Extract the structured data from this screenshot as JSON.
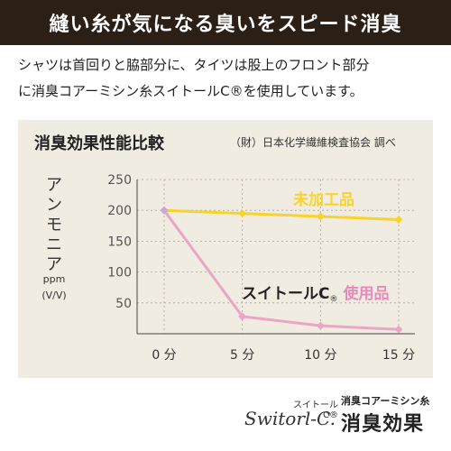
{
  "headline": "縫い糸が気になる臭いをスピード消臭",
  "description": [
    "シャツは首回りと脇部分に、タイツは股上のフロント部分",
    "に消臭コアーミシン糸スイトールC®を使用しています。"
  ],
  "colors": {
    "headline_bg": "#2b1f16",
    "panel_bg": "#f0ece2",
    "untreated": "#f7d32b",
    "treated": "#eaa6c4",
    "treated_label": "#e48bb7",
    "start_point": "#c8a8d8"
  },
  "chart_data": {
    "type": "line",
    "title": "消臭効果性能比較",
    "source": "（財）日本化学繊維検査協会 調べ",
    "ylabel": "アンモニア",
    "yunit": "ppm",
    "yunit2": "(V/V)",
    "ylim": [
      0,
      250
    ],
    "yticks": [
      50,
      100,
      150,
      200,
      250
    ],
    "x": [
      0,
      5,
      10,
      15
    ],
    "xtick_labels": [
      "0 分",
      "5 分",
      "10 分",
      "15 分"
    ],
    "grid": true,
    "series": [
      {
        "name": "未加工品",
        "values": [
          200,
          195,
          190,
          185
        ]
      },
      {
        "name": "スイトールC® 使用品",
        "label_prefix": "スイトールC",
        "label_mark": "®",
        "label_suffix": "使用品",
        "values": [
          200,
          28,
          13,
          7
        ]
      }
    ]
  },
  "brand": {
    "logo_small": "スイトール C®",
    "logo_script": "Switorl-C.",
    "tag_sub": "消臭コアーミシン糸",
    "tag_main": "消臭効果"
  }
}
